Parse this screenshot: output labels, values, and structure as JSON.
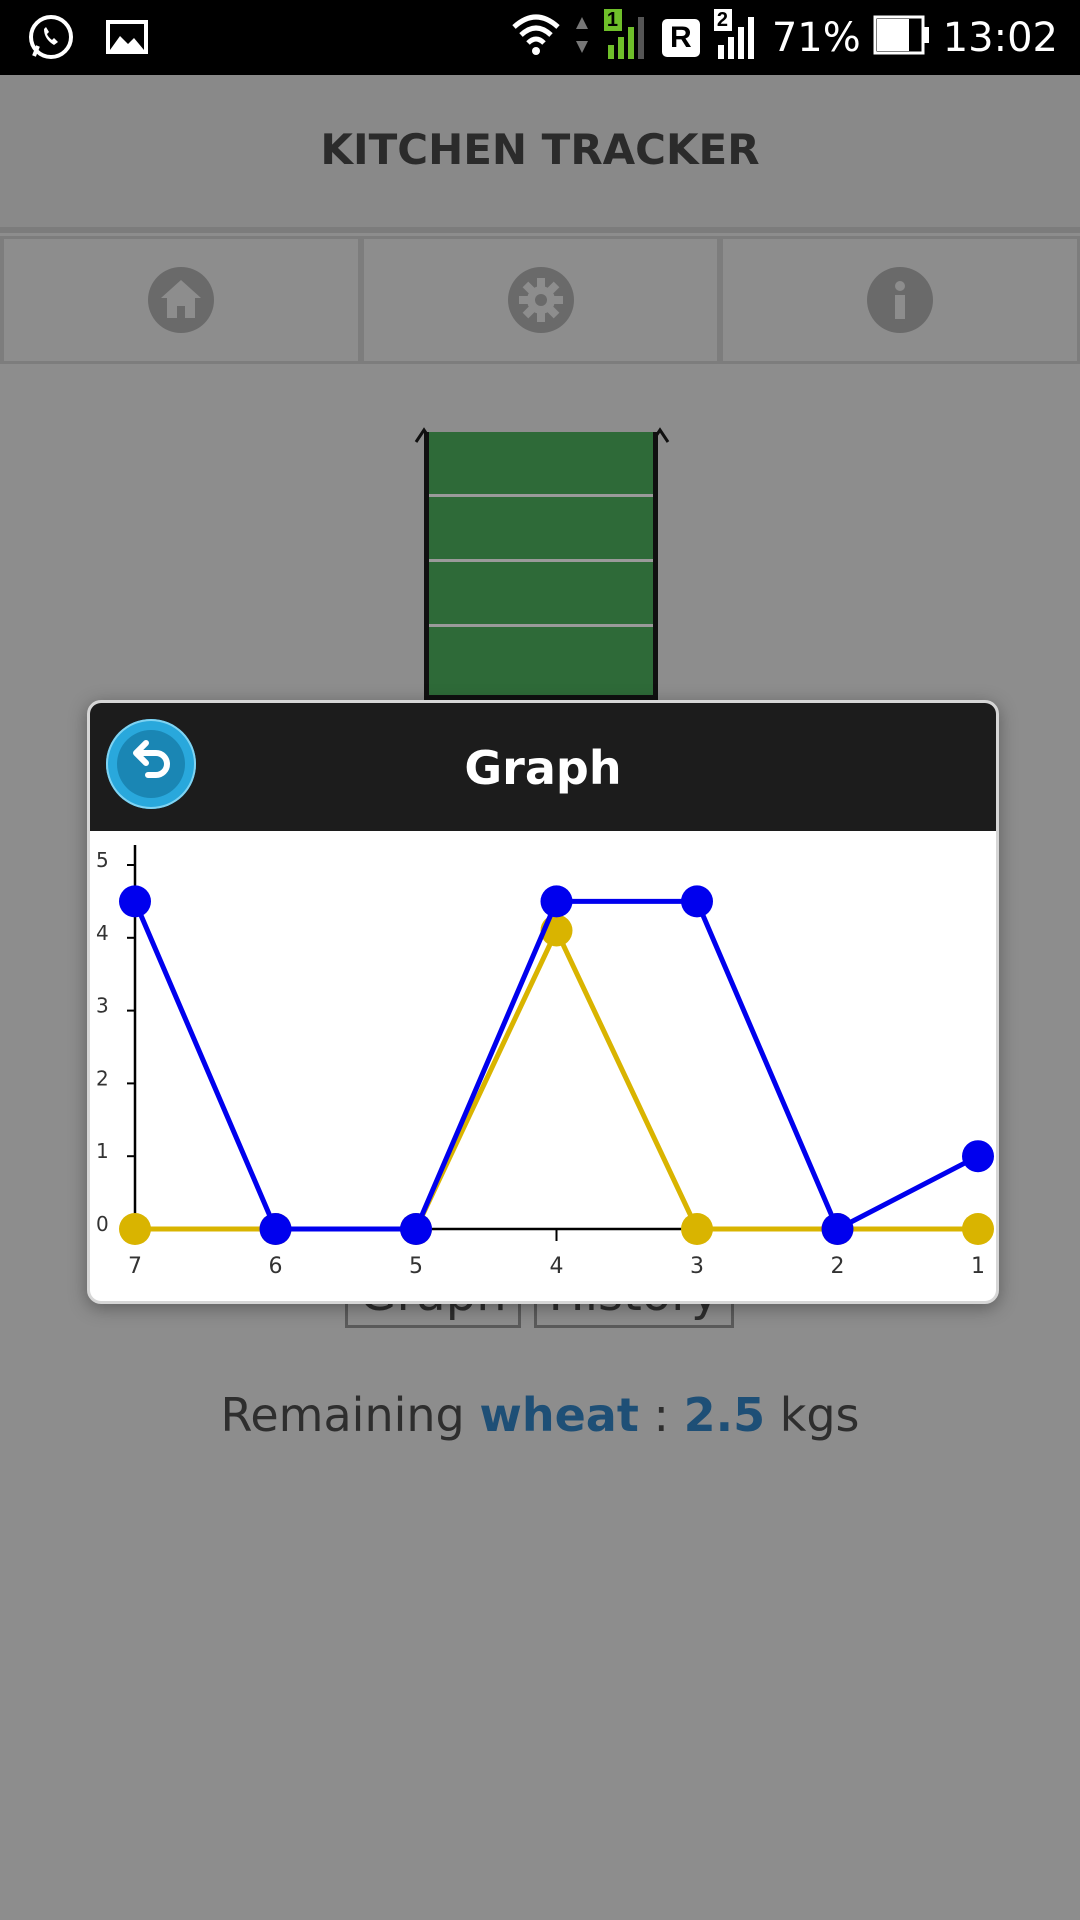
{
  "status_bar": {
    "battery_percent": "71%",
    "time": "13:02",
    "sim1_label": "1",
    "sim2_label": "2",
    "roaming_label": "R"
  },
  "app": {
    "title": "KITCHEN TRACKER"
  },
  "nav": {
    "items": [
      {
        "icon": "home-icon"
      },
      {
        "icon": "gear-icon"
      },
      {
        "icon": "info-icon"
      }
    ]
  },
  "buttons": {
    "graph_label": "Graph",
    "history_label": "History"
  },
  "remaining": {
    "prefix": "Remaining",
    "item": "wheat",
    "separator": ":",
    "amount": "2.5",
    "unit": "kgs"
  },
  "modal": {
    "title": "Graph"
  },
  "colors": {
    "series1": "#0000ee",
    "series2": "#d9b400",
    "bin_fill": "#2e6a38",
    "accent": "#29a8dc"
  },
  "chart_data": {
    "type": "line",
    "x": [
      "7",
      "6",
      "5",
      "4",
      "3",
      "2",
      "1"
    ],
    "yticks": [
      "0",
      "1",
      "2",
      "3",
      "4",
      "5"
    ],
    "ylim": [
      0,
      5
    ],
    "series": [
      {
        "color": "#d9b400",
        "values": [
          0,
          0,
          0,
          4.1,
          0,
          0,
          0
        ]
      },
      {
        "color": "#0000ee",
        "values": [
          4.5,
          0,
          0,
          4.5,
          4.5,
          0,
          1
        ]
      }
    ],
    "grid": false
  }
}
